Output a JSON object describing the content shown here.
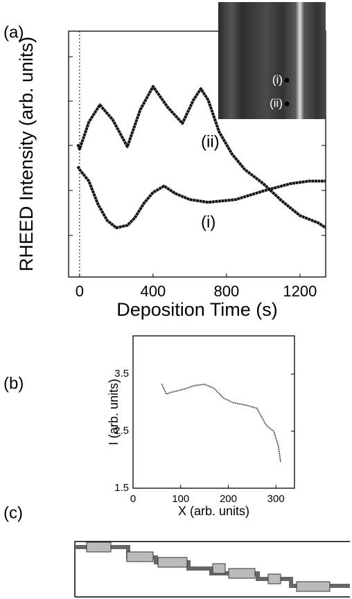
{
  "chart_data": [
    {
      "type": "line",
      "panel_label": "(a)",
      "x_label": "Deposition Time (s)",
      "y_label": "RHEED Intensity (arb. units)",
      "xlim": [
        -60,
        1340
      ],
      "xticks": [
        0,
        400,
        800,
        1200
      ],
      "ylim": [
        0,
        10
      ],
      "zero_line": true,
      "series": [
        {
          "name": "(ii)",
          "color": "#111111",
          "x": [
            -10,
            0,
            50,
            110,
            180,
            260,
            330,
            400,
            480,
            560,
            620,
            660,
            700,
            760,
            830,
            900,
            1000,
            1100,
            1200,
            1300,
            1340
          ],
          "values": [
            5.4,
            5.2,
            6.3,
            7.0,
            6.4,
            5.3,
            6.8,
            7.75,
            6.9,
            6.25,
            7.2,
            7.66,
            7.2,
            5.9,
            5.0,
            4.37,
            3.8,
            3.1,
            2.5,
            2.2,
            2.0
          ]
        },
        {
          "name": "(i)",
          "color": "#111111",
          "x": [
            -10,
            0,
            50,
            100,
            150,
            200,
            260,
            300,
            350,
            400,
            460,
            520,
            600,
            700,
            850,
            1000,
            1150,
            1250,
            1340
          ],
          "values": [
            4.5,
            4.37,
            3.9,
            2.96,
            2.3,
            2.0,
            2.1,
            2.4,
            3.0,
            3.44,
            3.7,
            3.4,
            3.15,
            3.04,
            3.15,
            3.5,
            3.8,
            3.9,
            3.9
          ]
        }
      ]
    },
    {
      "type": "line",
      "panel_label": "(b)",
      "x_label": "X (arb. units)",
      "y_label": "I (arb. units)",
      "xlim": [
        0,
        339
      ],
      "xticks": [
        0,
        100,
        200,
        300
      ],
      "ylim": [
        1.5,
        4.17
      ],
      "yticks": [
        1.5,
        2.5,
        3.5
      ],
      "series": [
        {
          "color": "#555555",
          "x": [
            60,
            70,
            80,
            100,
            130,
            150,
            170,
            190,
            210,
            240,
            260,
            280,
            295,
            305,
            310
          ],
          "values": [
            3.33,
            3.15,
            3.18,
            3.22,
            3.3,
            3.32,
            3.25,
            3.08,
            3.0,
            2.95,
            2.9,
            2.6,
            2.5,
            2.25,
            1.95
          ]
        }
      ]
    }
  ],
  "diagram": {
    "panel_label": "(c)"
  }
}
